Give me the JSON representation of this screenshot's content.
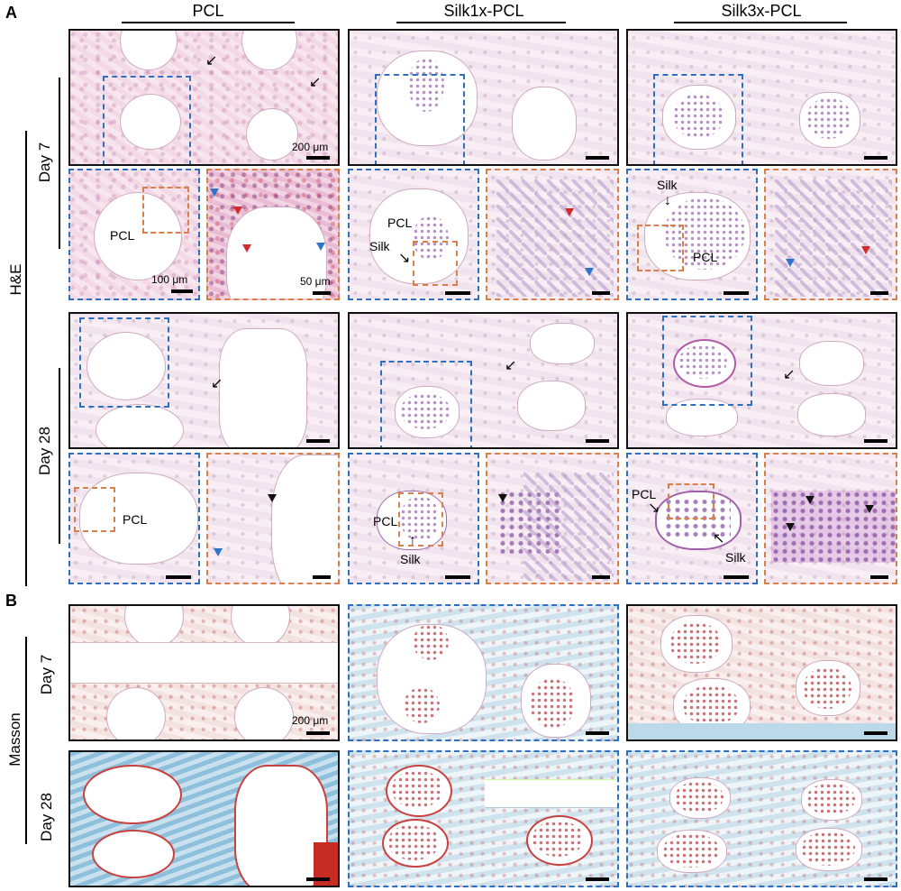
{
  "panels": {
    "a": "A",
    "b": "B"
  },
  "columns": [
    "PCL",
    "Silk1x-PCL",
    "Silk3x-PCL"
  ],
  "rows": {
    "he": "H&E",
    "masson": "Masson",
    "day7": "Day 7",
    "day28": "Day 28"
  },
  "labels": {
    "pcl": "PCL",
    "silk": "Silk"
  },
  "scale": {
    "s200": "200 μm",
    "s100": "100 μm",
    "s50": "50 μm"
  },
  "colors": {
    "blue_box": "#2f6fc0",
    "orange_box": "#d9804a",
    "red_arrowhead": "#d32b2b",
    "blue_arrowhead": "#2e74c9"
  }
}
